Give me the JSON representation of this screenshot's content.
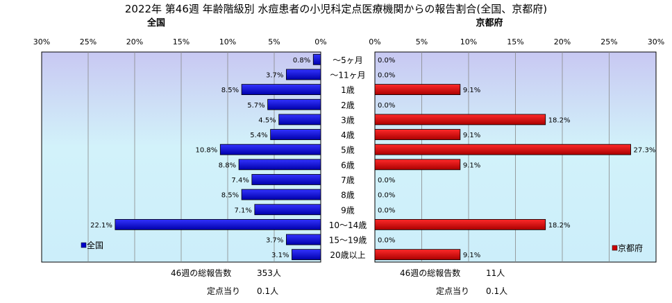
{
  "chart_data": {
    "type": "bar",
    "title": "2022年 第46週 年齢階級別 水痘患者の小児科定点医療機関からの報告割合(全国、京都府)",
    "categories": [
      "～5ヶ月",
      "～11ヶ月",
      "1歳",
      "2歳",
      "3歳",
      "4歳",
      "5歳",
      "6歳",
      "7歳",
      "8歳",
      "9歳",
      "10～14歳",
      "15～19歳",
      "20歳以上"
    ],
    "series": [
      {
        "name": "全国",
        "values": [
          0.8,
          3.7,
          8.5,
          5.7,
          4.5,
          5.4,
          10.8,
          8.8,
          7.4,
          8.5,
          7.1,
          22.1,
          3.7,
          3.1
        ],
        "color": "#0000cc"
      },
      {
        "name": "京都府",
        "values": [
          0.0,
          0.0,
          9.1,
          0.0,
          18.2,
          9.1,
          27.3,
          9.1,
          0.0,
          0.0,
          0.0,
          18.2,
          0.0,
          9.1
        ],
        "color": "#cc0000"
      }
    ],
    "panels": {
      "left": {
        "title": "全国",
        "xlim": [
          0,
          30
        ],
        "direction": "reversed"
      },
      "right": {
        "title": "京都府",
        "xlim": [
          0,
          30
        ],
        "direction": "normal"
      }
    },
    "xticks": [
      "30%",
      "25%",
      "20%",
      "15%",
      "10%",
      "5%",
      "0%"
    ],
    "xticks_right": [
      "0%",
      "5%",
      "10%",
      "15%",
      "20%",
      "25%",
      "30%"
    ],
    "value_suffix": "%",
    "legend_placement": "bottom-left / bottom-right",
    "grid": true
  },
  "footer": {
    "left": {
      "total_label": "46週の総報告数",
      "total_value": "353人",
      "per_label": "定点当り",
      "per_value": "0.1人"
    },
    "right": {
      "total_label": "46週の総報告数",
      "total_value": "11人",
      "per_label": "定点当り",
      "per_value": "0.1人"
    }
  }
}
